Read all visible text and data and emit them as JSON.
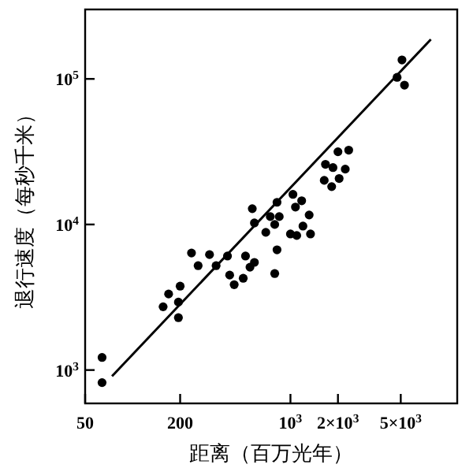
{
  "chart_data": {
    "type": "scatter",
    "xlabel": "距离（百万光年）",
    "ylabel": "退行速度（每秒千米）",
    "log": "xy",
    "grid": false,
    "marker": "circle",
    "xlim": [
      50,
      11400
    ],
    "ylim": [
      590,
      300000
    ],
    "xticks": [
      50,
      200,
      {
        "value": 1000,
        "label": "10$^{3}$"
      },
      {
        "value": 2000,
        "label": "2×10$^{3}$"
      },
      {
        "value": 5000,
        "label": "5×10$^{3}$"
      }
    ],
    "yticks": [
      {
        "value": 1000,
        "label": "10$^{3}$"
      },
      {
        "value": 10000,
        "label": "10$^{4}$"
      },
      {
        "value": 100000,
        "label": "10$^{5}$"
      }
    ],
    "series": [
      {
        "color": "#000000",
        "x": [
          64,
          64,
          156,
          169,
          195,
          200,
          195,
          236,
          260,
          307,
          338,
          399,
          412,
          440,
          502,
          519,
          554,
          591,
          795,
          822,
          698,
          591,
          795,
          1000,
          1096,
          1200,
          1340,
          573,
          745,
          822,
          849,
          1037,
          1076,
          1178,
          1314,
          1667,
          1637,
          1860,
          1825,
          2000,
          2035,
          2225,
          2340,
          4740,
          5090,
          5280
        ],
        "values": [
          1220,
          820,
          2720,
          3330,
          2930,
          3770,
          2290,
          6370,
          5210,
          6210,
          5210,
          6070,
          4490,
          3860,
          4270,
          6070,
          5090,
          5490,
          4600,
          6700,
          8830,
          10250,
          10000,
          8610,
          8400,
          9750,
          8610,
          12840,
          11330,
          14200,
          11330,
          16100,
          13170,
          14550,
          11620,
          25900,
          20100,
          24600,
          18200,
          31600,
          20700,
          24000,
          32400,
          102500,
          135000,
          90600
        ]
      },
      {
        "type": "line",
        "marker": "none",
        "color": "#000000",
        "x": [
          74,
          7760
        ],
        "values": [
          906,
          187000
        ]
      }
    ]
  }
}
